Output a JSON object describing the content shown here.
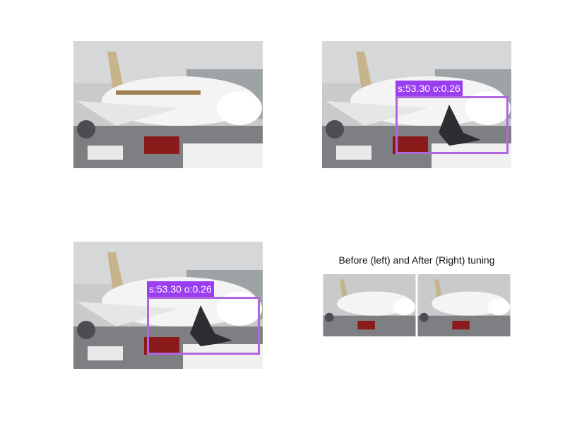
{
  "detections": {
    "top_right": {
      "score_text": "s:53.30 o:0.26"
    },
    "bottom_left": {
      "score_text": "s:53.30 o:0.26"
    }
  },
  "comparison": {
    "title": "Before (left) and After (Right) tuning"
  },
  "colors": {
    "box_stroke": "#b066dd",
    "label_bg": "#9b3ef0",
    "label_text": "#ffffff"
  }
}
